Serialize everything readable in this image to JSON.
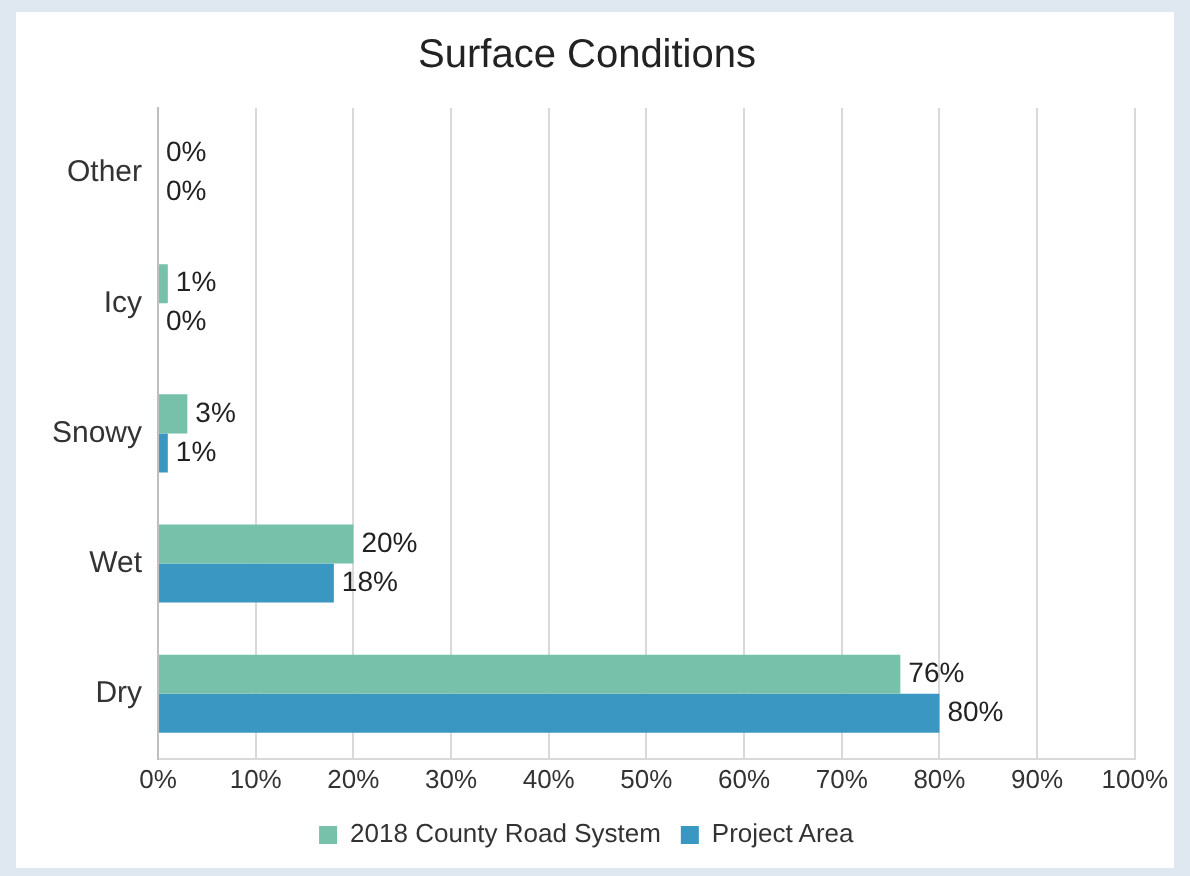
{
  "chart_data": {
    "type": "bar",
    "orientation": "horizontal",
    "title": "Surface Conditions",
    "categories": [
      "Other",
      "Icy",
      "Snowy",
      "Wet",
      "Dry"
    ],
    "series": [
      {
        "name": "2018 County Road System",
        "color": "#77c0a9",
        "values": [
          0,
          1,
          3,
          20,
          76
        ],
        "value_labels": [
          "0%",
          "1%",
          "3%",
          "20%",
          "76%"
        ]
      },
      {
        "name": "Project Area",
        "color": "#3a97c2",
        "values": [
          0,
          0,
          1,
          18,
          80
        ],
        "value_labels": [
          "0%",
          "0%",
          "1%",
          "18%",
          "80%"
        ]
      }
    ],
    "xlim": [
      0,
      100
    ],
    "xticks": [
      {
        "value": 0,
        "label": "0%"
      },
      {
        "value": 10,
        "label": "10%"
      },
      {
        "value": 20,
        "label": "20%"
      },
      {
        "value": 30,
        "label": "30%"
      },
      {
        "value": 40,
        "label": "40%"
      },
      {
        "value": 50,
        "label": "50%"
      },
      {
        "value": 60,
        "label": "60%"
      },
      {
        "value": 70,
        "label": "70%"
      },
      {
        "value": 80,
        "label": "80%"
      },
      {
        "value": 90,
        "label": "90%"
      },
      {
        "value": 100,
        "label": "100%"
      }
    ],
    "grid": "x",
    "legend": "bottom"
  }
}
